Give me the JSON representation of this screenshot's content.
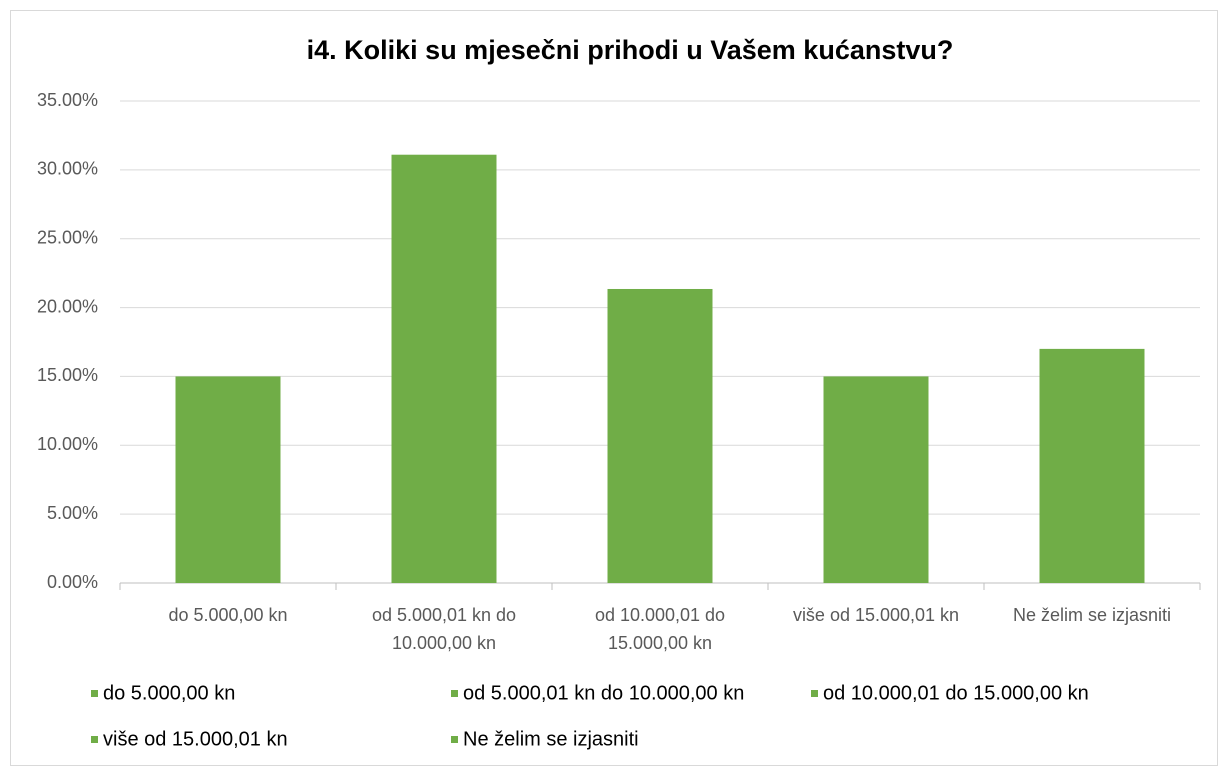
{
  "chart_data": {
    "type": "bar",
    "title": "i4. Koliki su mjesečni prihodi u Vašem kućanstvu?",
    "categories": [
      "do 5.000,00 kn",
      "od 5.000,01 kn do 10.000,00 kn",
      "od 10.000,01 do 15.000,00 kn",
      "više od 15.000,01 kn",
      "Ne želim se izjasniti"
    ],
    "values": [
      15.0,
      31.1,
      21.35,
      15.0,
      17.0
    ],
    "color": "#70ad47",
    "ylim": [
      0,
      35
    ],
    "yticks": [
      {
        "value": 0,
        "label": "0.00%"
      },
      {
        "value": 5,
        "label": "5.00%"
      },
      {
        "value": 10,
        "label": "10.00%"
      },
      {
        "value": 15,
        "label": "15.00%"
      },
      {
        "value": 20,
        "label": "20.00%"
      },
      {
        "value": 25,
        "label": "25.00%"
      },
      {
        "value": 30,
        "label": "30.00%"
      },
      {
        "value": 35,
        "label": "35.00%"
      }
    ],
    "grid": true,
    "legend": "bottom"
  }
}
